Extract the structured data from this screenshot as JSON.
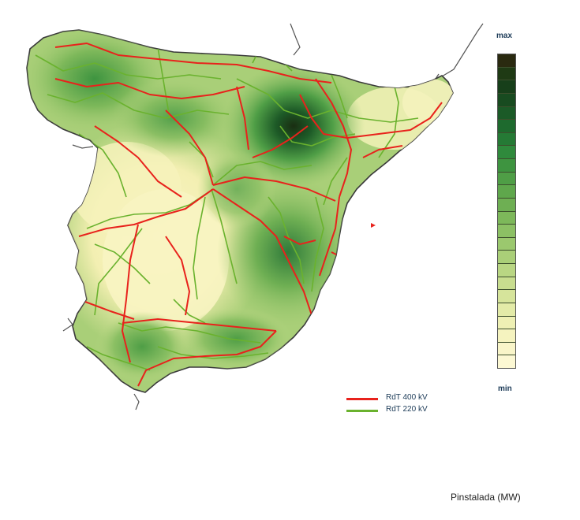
{
  "map": {
    "region": "Spain (Peninsular)"
  },
  "scale": {
    "max_label": "max",
    "min_label": "min",
    "colors": [
      "#2a2a10",
      "#1f3a14",
      "#173f1a",
      "#184b20",
      "#1b5a27",
      "#1e6a2e",
      "#257a35",
      "#2f8a3c",
      "#3e9440",
      "#4f9e46",
      "#5fa74c",
      "#6eaf53",
      "#7db85a",
      "#8cc064",
      "#9bc86e",
      "#aacf78",
      "#b9d683",
      "#c8dd8f",
      "#d6e49b",
      "#e3eba8",
      "#eef0b4",
      "#f5f3bf",
      "#f9f5c9",
      "#fcf8d3"
    ]
  },
  "legend": {
    "items": [
      {
        "label": "RdT 400 kV",
        "color": "#e8221c"
      },
      {
        "label": "RdT 220 kV",
        "color": "#6ab22e"
      }
    ]
  },
  "footer": {
    "label": "Pinstalada (MW)"
  }
}
